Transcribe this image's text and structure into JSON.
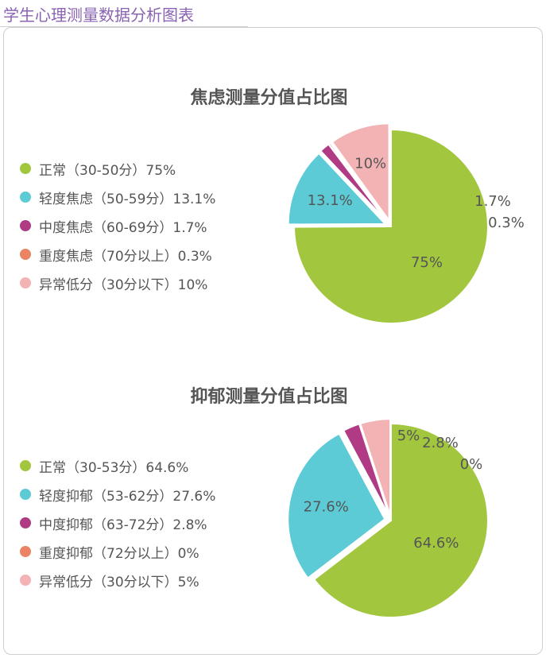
{
  "page_title": "学生心理测量数据分析图表",
  "chart_data": [
    {
      "type": "pie",
      "title": "焦虑测量分值占比图",
      "slices": [
        {
          "label": "正常（30-50分）75%",
          "value": 75,
          "value_label": "75%",
          "color": "#a2c73f"
        },
        {
          "label": "轻度焦虑（50-59分）13.1%",
          "value": 13.1,
          "value_label": "13.1%",
          "color": "#5ccbd6"
        },
        {
          "label": "中度焦虑（60-69分）1.7%",
          "value": 1.7,
          "value_label": "1.7%",
          "color": "#b03a83"
        },
        {
          "label": "重度焦虑（70分以上）0.3%",
          "value": 0.3,
          "value_label": "0.3%",
          "color": "#ea8464"
        },
        {
          "label": "异常低分（30分以下）10%",
          "value": 10,
          "value_label": "10%",
          "color": "#f3b3b5"
        }
      ]
    },
    {
      "type": "pie",
      "title": "抑郁测量分值占比图",
      "slices": [
        {
          "label": "正常（30-53分）64.6%",
          "value": 64.6,
          "value_label": "64.6%",
          "color": "#a2c73f"
        },
        {
          "label": "轻度抑郁（53-62分）27.6%",
          "value": 27.6,
          "value_label": "27.6%",
          "color": "#5ccbd6"
        },
        {
          "label": "中度抑郁（63-72分）2.8%",
          "value": 2.8,
          "value_label": "2.8%",
          "color": "#b03a83"
        },
        {
          "label": "重度抑郁（72分以上）0%",
          "value": 0,
          "value_label": "0%",
          "color": "#ea8464"
        },
        {
          "label": "异常低分（30分以下）5%",
          "value": 5,
          "value_label": "5%",
          "color": "#f3b3b5"
        }
      ]
    }
  ]
}
